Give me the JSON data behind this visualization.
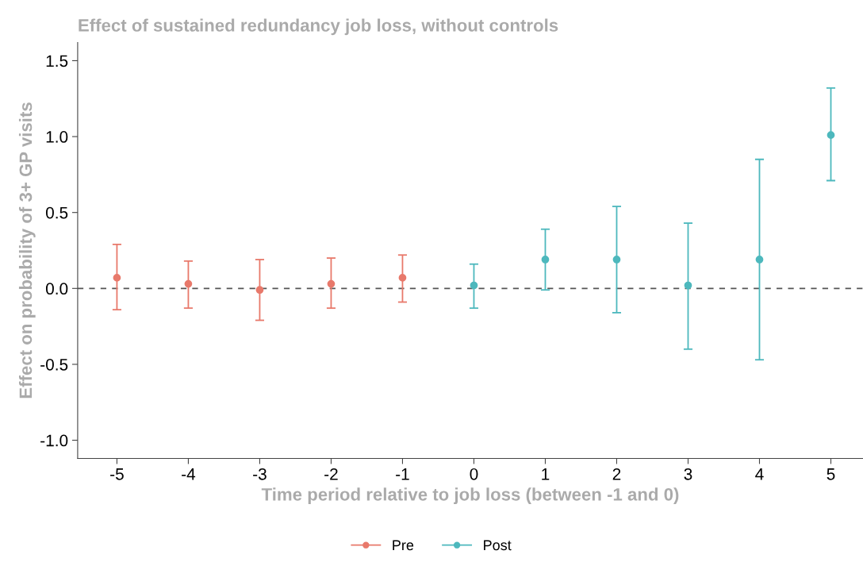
{
  "chart_data": {
    "type": "scatter",
    "title": "Effect of sustained redundancy job loss, without controls",
    "xlabel": "Time period relative to job loss (between -1 and 0)",
    "ylabel": "Effect on probability of 3+ GP visits",
    "series": [
      {
        "name": "Pre",
        "color": "#e8796b",
        "x": [
          -5,
          -4,
          -3,
          -2,
          -1
        ],
        "values": [
          0.07,
          0.03,
          -0.01,
          0.03,
          0.07
        ],
        "errors": [
          [
            -0.14,
            0.29
          ],
          [
            -0.13,
            0.18
          ],
          [
            -0.21,
            0.19
          ],
          [
            -0.13,
            0.2
          ],
          [
            -0.09,
            0.22
          ]
        ]
      },
      {
        "name": "Post",
        "color": "#4db8bd",
        "x": [
          0,
          1,
          2,
          3,
          4,
          5
        ],
        "values": [
          0.02,
          0.19,
          0.19,
          0.02,
          0.19,
          1.01
        ],
        "errors": [
          [
            -0.13,
            0.16
          ],
          [
            -0.01,
            0.39
          ],
          [
            -0.16,
            0.54
          ],
          [
            -0.4,
            0.43
          ],
          [
            -0.47,
            0.85
          ],
          [
            0.71,
            1.32
          ]
        ]
      }
    ],
    "xlim": [
      -5.55,
      5.45
    ],
    "xticks": [
      -5,
      -4,
      -3,
      -2,
      -1,
      0,
      1,
      2,
      3,
      4,
      5
    ],
    "ylim": [
      -1.12,
      1.62
    ],
    "yticks": [
      {
        "value": 1.5,
        "label": "1.5"
      },
      {
        "value": 1.0,
        "label": "1.0"
      },
      {
        "value": 0.5,
        "label": "0.5"
      },
      {
        "value": 0.0,
        "label": "0.0"
      },
      {
        "value": -0.5,
        "label": "-0.5"
      },
      {
        "value": -1.0,
        "label": "-1.0"
      }
    ],
    "ref_lines": [
      {
        "axis": "y",
        "value": 0,
        "color": "#555555",
        "line_style": "dashed"
      }
    ],
    "grid": false,
    "legend": "bottom",
    "marker": "circle"
  }
}
